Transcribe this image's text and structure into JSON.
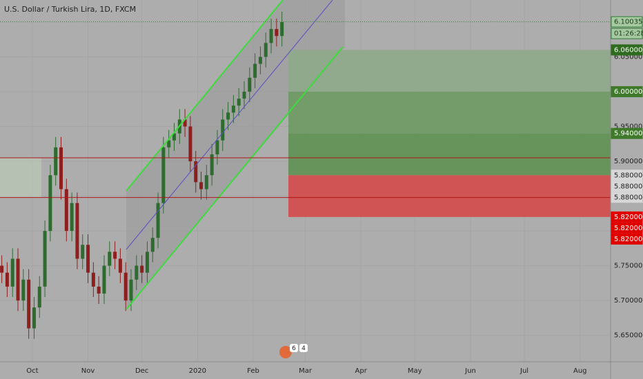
{
  "chart_data": {
    "type": "candlestick",
    "title": "U.S. Dollar / Turkish Lira, 1D, FXCM",
    "x": [
      -17,
      -14,
      -11,
      -8,
      -5,
      -2,
      1,
      4,
      7,
      10,
      13,
      16,
      19,
      22,
      25,
      28,
      31,
      34,
      37,
      40,
      43,
      46,
      49,
      52,
      55,
      58,
      61,
      64,
      67,
      70,
      73,
      76,
      79,
      82,
      85,
      88,
      91,
      94,
      97,
      100,
      103,
      106,
      109,
      112,
      115,
      118,
      121,
      124,
      127,
      130,
      133,
      136,
      139
    ],
    "open": [
      5.75,
      5.74,
      5.72,
      5.76,
      5.7,
      5.73,
      5.66,
      5.69,
      5.72,
      5.8,
      5.88,
      5.92,
      5.86,
      5.8,
      5.84,
      5.76,
      5.78,
      5.74,
      5.72,
      5.71,
      5.75,
      5.77,
      5.76,
      5.74,
      5.7,
      5.73,
      5.75,
      5.74,
      5.77,
      5.79,
      5.84,
      5.92,
      5.93,
      5.94,
      5.96,
      5.95,
      5.9,
      5.87,
      5.86,
      5.88,
      5.91,
      5.93,
      5.96,
      5.97,
      5.98,
      5.99,
      6.0,
      6.02,
      6.04,
      6.05,
      6.07,
      6.09,
      6.08
    ],
    "high": [
      5.765,
      5.755,
      5.775,
      5.775,
      5.745,
      5.745,
      5.705,
      5.735,
      5.815,
      5.895,
      5.935,
      5.935,
      5.875,
      5.855,
      5.855,
      5.795,
      5.795,
      5.755,
      5.735,
      5.765,
      5.785,
      5.785,
      5.775,
      5.755,
      5.745,
      5.765,
      5.765,
      5.785,
      5.805,
      5.855,
      5.935,
      5.945,
      5.955,
      5.975,
      5.975,
      5.965,
      5.915,
      5.885,
      5.895,
      5.925,
      5.945,
      5.975,
      5.985,
      5.995,
      6.005,
      6.015,
      6.035,
      6.055,
      6.065,
      6.085,
      6.105,
      6.105,
      6.115
    ],
    "low": [
      5.725,
      5.705,
      5.705,
      5.685,
      5.685,
      5.645,
      5.645,
      5.675,
      5.705,
      5.785,
      5.865,
      5.845,
      5.785,
      5.785,
      5.745,
      5.745,
      5.725,
      5.705,
      5.695,
      5.695,
      5.735,
      5.745,
      5.725,
      5.685,
      5.685,
      5.715,
      5.725,
      5.725,
      5.755,
      5.775,
      5.825,
      5.905,
      5.915,
      5.925,
      5.935,
      5.885,
      5.855,
      5.845,
      5.845,
      5.865,
      5.895,
      5.915,
      5.945,
      5.955,
      5.965,
      5.975,
      5.985,
      6.005,
      6.025,
      6.035,
      6.055,
      6.065,
      6.065
    ],
    "close": [
      5.74,
      5.72,
      5.76,
      5.7,
      5.73,
      5.66,
      5.69,
      5.72,
      5.8,
      5.88,
      5.92,
      5.86,
      5.8,
      5.84,
      5.76,
      5.78,
      5.74,
      5.72,
      5.71,
      5.75,
      5.77,
      5.76,
      5.74,
      5.7,
      5.73,
      5.75,
      5.74,
      5.77,
      5.79,
      5.84,
      5.92,
      5.93,
      5.94,
      5.96,
      5.95,
      5.9,
      5.87,
      5.86,
      5.88,
      5.91,
      5.93,
      5.96,
      5.97,
      5.98,
      5.99,
      6.0,
      6.02,
      6.04,
      6.05,
      6.07,
      6.09,
      6.08,
      6.1
    ],
    "up_color": "#2e6b2f",
    "down_color": "#8e1f1f",
    "xlim": [
      -18,
      322
    ],
    "xticks": [
      {
        "value": 0,
        "label": "Oct"
      },
      {
        "value": 31,
        "label": "Nov"
      },
      {
        "value": 61,
        "label": "Dec"
      },
      {
        "value": 92,
        "label": "2020"
      },
      {
        "value": 123,
        "label": "Feb"
      },
      {
        "value": 152,
        "label": "Mar"
      },
      {
        "value": 183,
        "label": "Apr"
      },
      {
        "value": 213,
        "label": "May"
      },
      {
        "value": 244,
        "label": "Jun"
      },
      {
        "value": 274,
        "label": "Jul"
      },
      {
        "value": 305,
        "label": "Aug"
      }
    ],
    "ylim": [
      5.612,
      6.1317
    ],
    "yticks": [
      {
        "value": 5.65,
        "label": "5.65000"
      },
      {
        "value": 5.7,
        "label": "5.70000"
      },
      {
        "value": 5.75,
        "label": "5.75000"
      },
      {
        "value": 5.8,
        "label": "5.80000"
      },
      {
        "value": 5.85,
        "label": "5.85000"
      },
      {
        "value": 5.9,
        "label": "5.90000"
      },
      {
        "value": 5.95,
        "label": "5.95000"
      },
      {
        "value": 6.0,
        "label": "6.00000"
      },
      {
        "value": 6.05,
        "label": "6.05000"
      }
    ],
    "grid": true,
    "zones": [
      {
        "low": 6.0,
        "high": 6.06,
        "color": "#8ea889"
      },
      {
        "low": 5.94,
        "high": 6.0,
        "color": "#6d9a63"
      },
      {
        "low": 5.88,
        "high": 5.94,
        "color": "#5e9152"
      },
      {
        "low": 5.82,
        "high": 5.88,
        "color": "#d44a4a"
      }
    ],
    "hlines": [
      {
        "value": 5.905,
        "color": "#b01515"
      },
      {
        "value": 5.848,
        "color": "#b01515"
      }
    ],
    "price_tags": [
      {
        "value": 6.10035,
        "label": "6.10035",
        "color": "#a7c9a2",
        "text_color": "#1b3d18",
        "border": "#2e7d32"
      },
      {
        "value": 6.06,
        "label": "6.06000",
        "color": "#2e6b1f",
        "text_color": "#ffffff",
        "border": "#2e6b1f"
      },
      {
        "value": 6.0,
        "label": "6.00000",
        "color": "#3f7a2a",
        "text_color": "#ffffff",
        "border": "#3f7a2a"
      },
      {
        "value": 5.94,
        "label": "5.94000",
        "color": "#3f7a2a",
        "text_color": "#ffffff",
        "border": "#3f7a2a"
      },
      {
        "value": 5.88,
        "label": "5.88000",
        "color": "#d7d7d7",
        "text_color": "#222222",
        "border": "#d7d7d7"
      },
      {
        "value": 5.88,
        "label": "5.88000",
        "color": "#d7d7d7",
        "text_color": "#222222",
        "border": "#d7d7d7"
      },
      {
        "value": 5.88,
        "label": "5.88000",
        "color": "#d7d7d7",
        "text_color": "#222222",
        "border": "#d7d7d7"
      },
      {
        "value": 5.82,
        "label": "5.82000",
        "color": "#e00000",
        "text_color": "#ffffff",
        "border": "#e00000"
      },
      {
        "value": 5.82,
        "label": "5.82000",
        "color": "#e00000",
        "text_color": "#ffffff",
        "border": "#e00000"
      },
      {
        "value": 5.82,
        "label": "5.82000",
        "color": "#e00000",
        "text_color": "#ffffff",
        "border": "#e00000"
      }
    ],
    "countdown": "01:26:28",
    "event_badges": [
      "6",
      "4"
    ]
  }
}
